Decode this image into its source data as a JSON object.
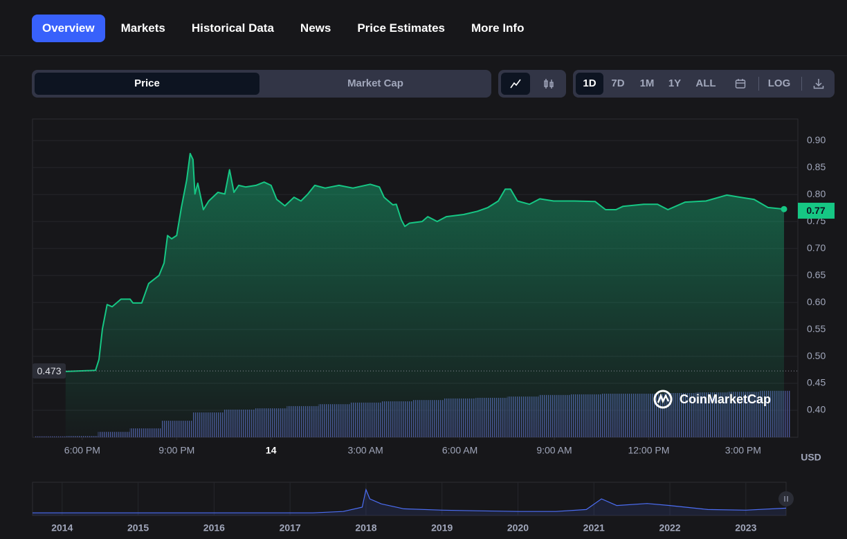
{
  "tabs": [
    "Overview",
    "Markets",
    "Historical Data",
    "News",
    "Price Estimates",
    "More Info"
  ],
  "chart_toggle": [
    "Price",
    "Market Cap"
  ],
  "range_buttons": [
    "1D",
    "7D",
    "1M",
    "1Y",
    "ALL",
    "LOG"
  ],
  "chart_data": [
    {
      "type": "line",
      "color": "#16c784",
      "x": [
        -0.53,
        0.42,
        0.53,
        0.64,
        0.79,
        0.95,
        1.23,
        1.52,
        1.61,
        1.89,
        2.11,
        2.44,
        2.6,
        2.71,
        2.84,
        3.0,
        3.15,
        3.32,
        3.43,
        3.52,
        3.58,
        3.67,
        3.85,
        4.02,
        4.31,
        4.53,
        4.68,
        4.82,
        4.97,
        5.19,
        5.52,
        5.78,
        6.0,
        6.18,
        6.44,
        6.73,
        6.95,
        7.17,
        7.39,
        7.72,
        8.16,
        8.6,
        9.15,
        9.44,
        9.59,
        9.87,
        9.98,
        10.14,
        10.25,
        10.4,
        10.8,
        10.98,
        11.28,
        11.57,
        12.12,
        12.56,
        12.89,
        13.22,
        13.44,
        13.61,
        13.83,
        14.21,
        14.54,
        14.98,
        15.64,
        16.3,
        16.63,
        16.96,
        17.18,
        17.84,
        18.28,
        18.61,
        19.16,
        19.82,
        20.48,
        20.91,
        21.35,
        21.79,
        22.3
      ],
      "values": [
        0.472,
        0.474,
        0.494,
        0.551,
        0.596,
        0.592,
        0.606,
        0.606,
        0.599,
        0.599,
        0.635,
        0.65,
        0.673,
        0.724,
        0.718,
        0.724,
        0.776,
        0.827,
        0.876,
        0.865,
        0.801,
        0.821,
        0.772,
        0.788,
        0.804,
        0.801,
        0.846,
        0.804,
        0.817,
        0.814,
        0.817,
        0.823,
        0.817,
        0.791,
        0.779,
        0.795,
        0.788,
        0.801,
        0.817,
        0.812,
        0.817,
        0.812,
        0.819,
        0.814,
        0.795,
        0.781,
        0.782,
        0.753,
        0.741,
        0.747,
        0.75,
        0.759,
        0.75,
        0.759,
        0.763,
        0.769,
        0.776,
        0.788,
        0.81,
        0.81,
        0.788,
        0.782,
        0.792,
        0.788,
        0.788,
        0.787,
        0.772,
        0.772,
        0.778,
        0.782,
        0.782,
        0.772,
        0.786,
        0.788,
        0.799,
        0.795,
        0.791,
        0.776,
        0.773
      ],
      "xlim": [
        -1.58,
        22.74
      ],
      "xticks": [
        {
          "value": 0,
          "label": "6:00 PM"
        },
        {
          "value": 3,
          "label": "9:00 PM"
        },
        {
          "value": 6,
          "label": "14"
        },
        {
          "value": 9,
          "label": "3:00 AM"
        },
        {
          "value": 12,
          "label": "6:00 AM"
        },
        {
          "value": 15,
          "label": "9:00 AM"
        },
        {
          "value": 18,
          "label": "12:00 PM"
        },
        {
          "value": 21,
          "label": "3:00 PM"
        }
      ],
      "ylim": [
        0.35,
        0.94
      ],
      "yticks": [
        {
          "value": 0.4,
          "label": "0.40"
        },
        0.45,
        {
          "value": 0.5,
          "label": "0.50"
        },
        0.55,
        {
          "value": 0.6,
          "label": "0.60"
        },
        0.65,
        {
          "value": 0.7,
          "label": "0.70"
        },
        0.75,
        {
          "value": 0.8,
          "label": "0.80"
        },
        0.85,
        {
          "value": 0.9,
          "label": "0.90"
        }
      ],
      "grid": true,
      "y_axis_label": "USD",
      "current_price": 0.77,
      "reference_price": 0.473,
      "watermark": "CoinMarketCap",
      "volume_color": "#4a5495",
      "volume_x": [
        -1,
        0,
        1,
        2,
        3,
        4,
        5,
        6,
        7,
        8,
        9,
        10,
        11,
        12,
        13,
        14,
        15,
        16,
        17,
        18,
        19,
        20,
        21,
        22
      ],
      "volume_values": [
        0.3,
        0.4,
        1.7,
        2.8,
        5.2,
        7.8,
        8.7,
        9.1,
        9.8,
        10.4,
        10.9,
        11.3,
        11.7,
        12.2,
        12.4,
        12.8,
        13.3,
        13.5,
        13.7,
        13.7,
        13.9,
        14.1,
        14.3,
        14.6
      ],
      "y2lim": [
        0,
        100
      ]
    },
    {
      "type": "line",
      "color": "#4c6ef5",
      "x": [
        2013.61,
        2017.3,
        2017.7,
        2017.95,
        2018.0,
        2018.05,
        2018.2,
        2018.5,
        2019,
        2019.5,
        2020,
        2020.5,
        2020.9,
        2021.1,
        2021.3,
        2021.7,
        2022,
        2022.5,
        2023,
        2023.53
      ],
      "values": [
        8,
        8,
        12,
        25,
        78,
        50,
        35,
        20,
        16,
        14,
        12,
        12,
        18,
        50,
        30,
        36,
        30,
        18,
        16,
        22
      ],
      "xlim": [
        2013.61,
        2023.53
      ],
      "xticks": [
        2014,
        2015,
        2016,
        2017,
        2018,
        2019,
        2020,
        2021,
        2022,
        2023
      ],
      "ylim": [
        0,
        100
      ]
    }
  ]
}
